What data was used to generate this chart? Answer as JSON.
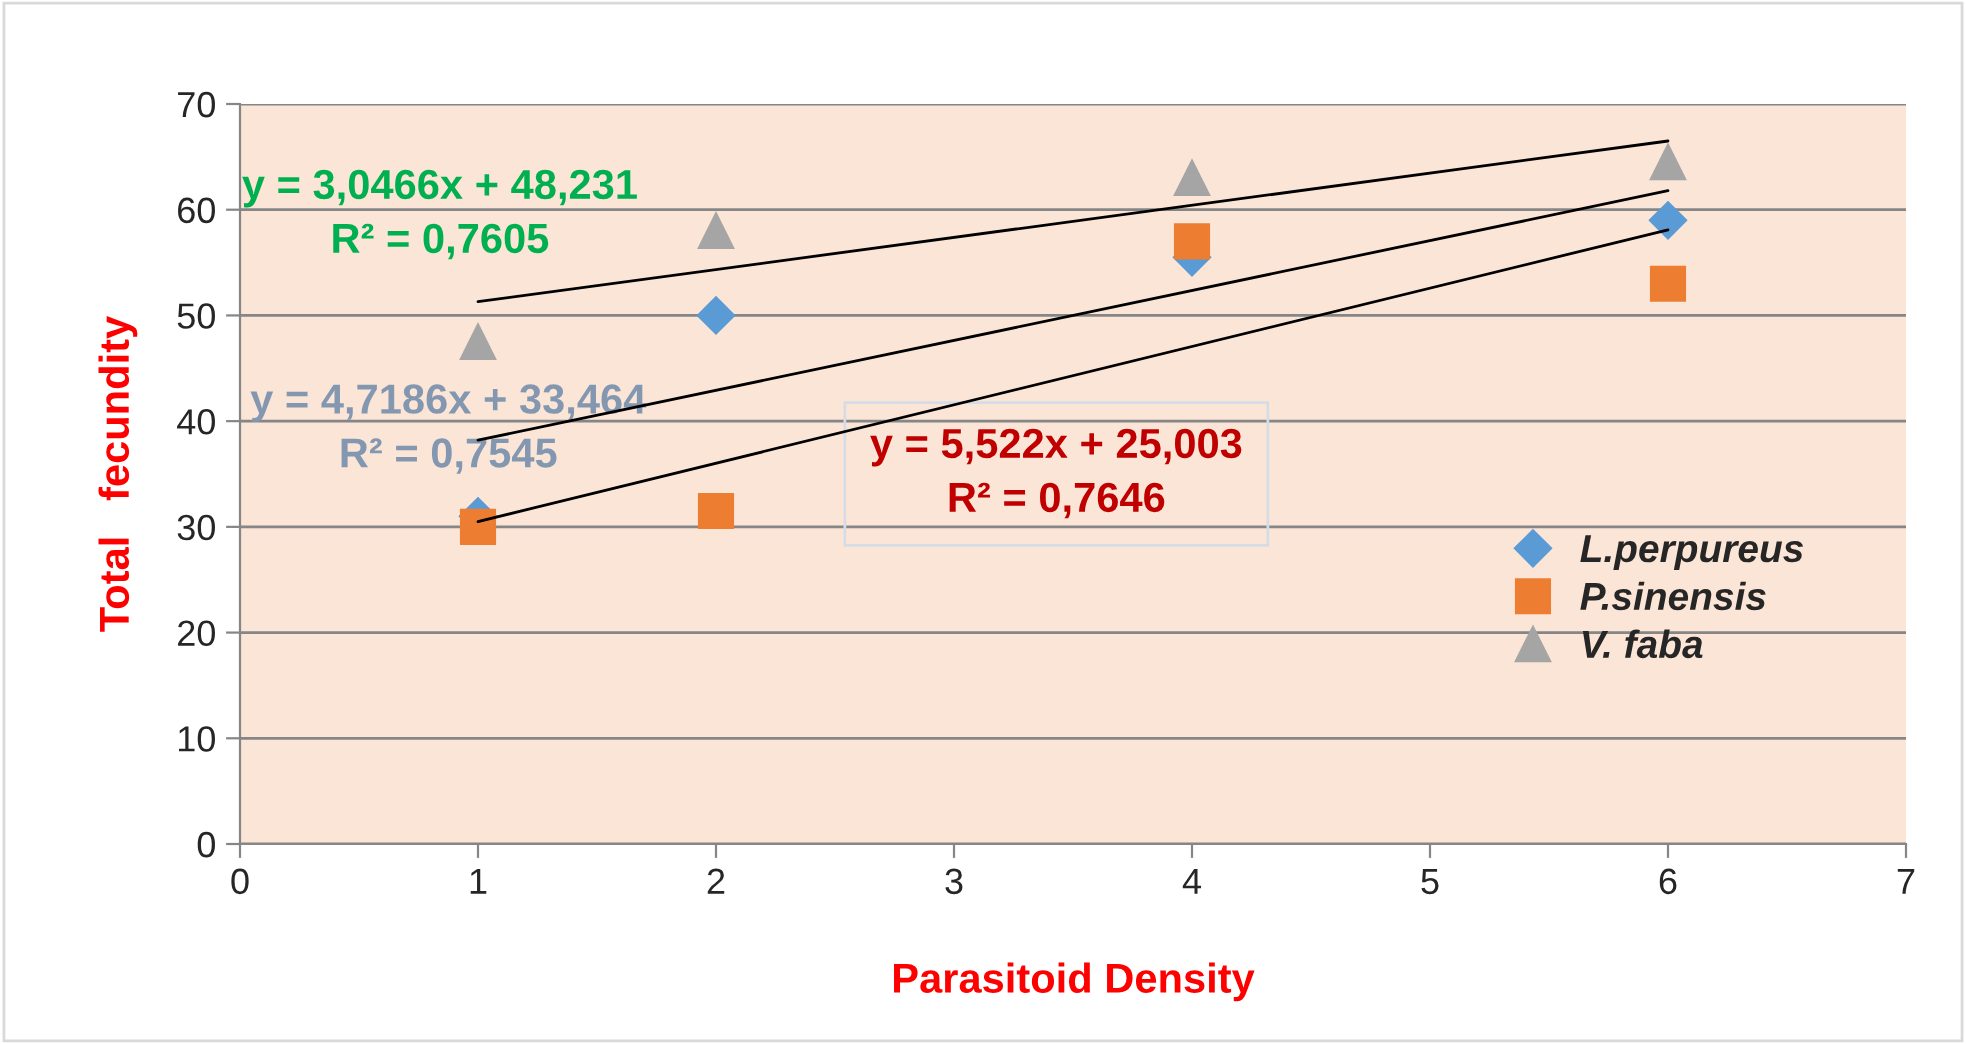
{
  "chart_data": {
    "type": "scatter",
    "xlabel": "Parasitoid Density",
    "ylabel": "Total   fecundity",
    "xlim": [
      0,
      7
    ],
    "xticks": [
      0,
      1,
      2,
      3,
      4,
      5,
      6,
      7
    ],
    "ylim": [
      0,
      70
    ],
    "yticks": [
      0,
      10,
      20,
      30,
      40,
      50,
      60,
      70
    ],
    "grid": "y",
    "legend": "right",
    "series": [
      {
        "name": "L.perpureus",
        "color": "#5b9bd5",
        "marker": "diamond",
        "x": [
          1,
          2,
          4,
          6
        ],
        "values": [
          31,
          50,
          55.5,
          59
        ]
      },
      {
        "name": "P.sinensis",
        "color": "#ed7d31",
        "marker": "square",
        "x": [
          1,
          2,
          4,
          6
        ],
        "values": [
          30,
          31.5,
          57,
          53
        ]
      },
      {
        "name": "V. faba",
        "color": "#a5a5a5",
        "marker": "triangle",
        "x": [
          1,
          2,
          4,
          6
        ],
        "values": [
          47.5,
          58,
          63,
          64.5
        ]
      },
      {
        "type": "line",
        "color": "#000000",
        "x": [
          1,
          6
        ],
        "values": [
          51.3,
          66.5
        ]
      },
      {
        "type": "line",
        "color": "#000000",
        "x": [
          1,
          6
        ],
        "values": [
          38.2,
          61.8
        ]
      },
      {
        "type": "line",
        "color": "#000000",
        "x": [
          1,
          6
        ],
        "values": [
          30.5,
          58.1
        ]
      }
    ],
    "annotations": [
      "y = 3,0466x + 48,231\nR² = 0,7605",
      "y = 4,7186x + 33,464\nR² = 0,7545",
      "y = 5,522x + 25,003\nR² = 0,7646"
    ]
  }
}
